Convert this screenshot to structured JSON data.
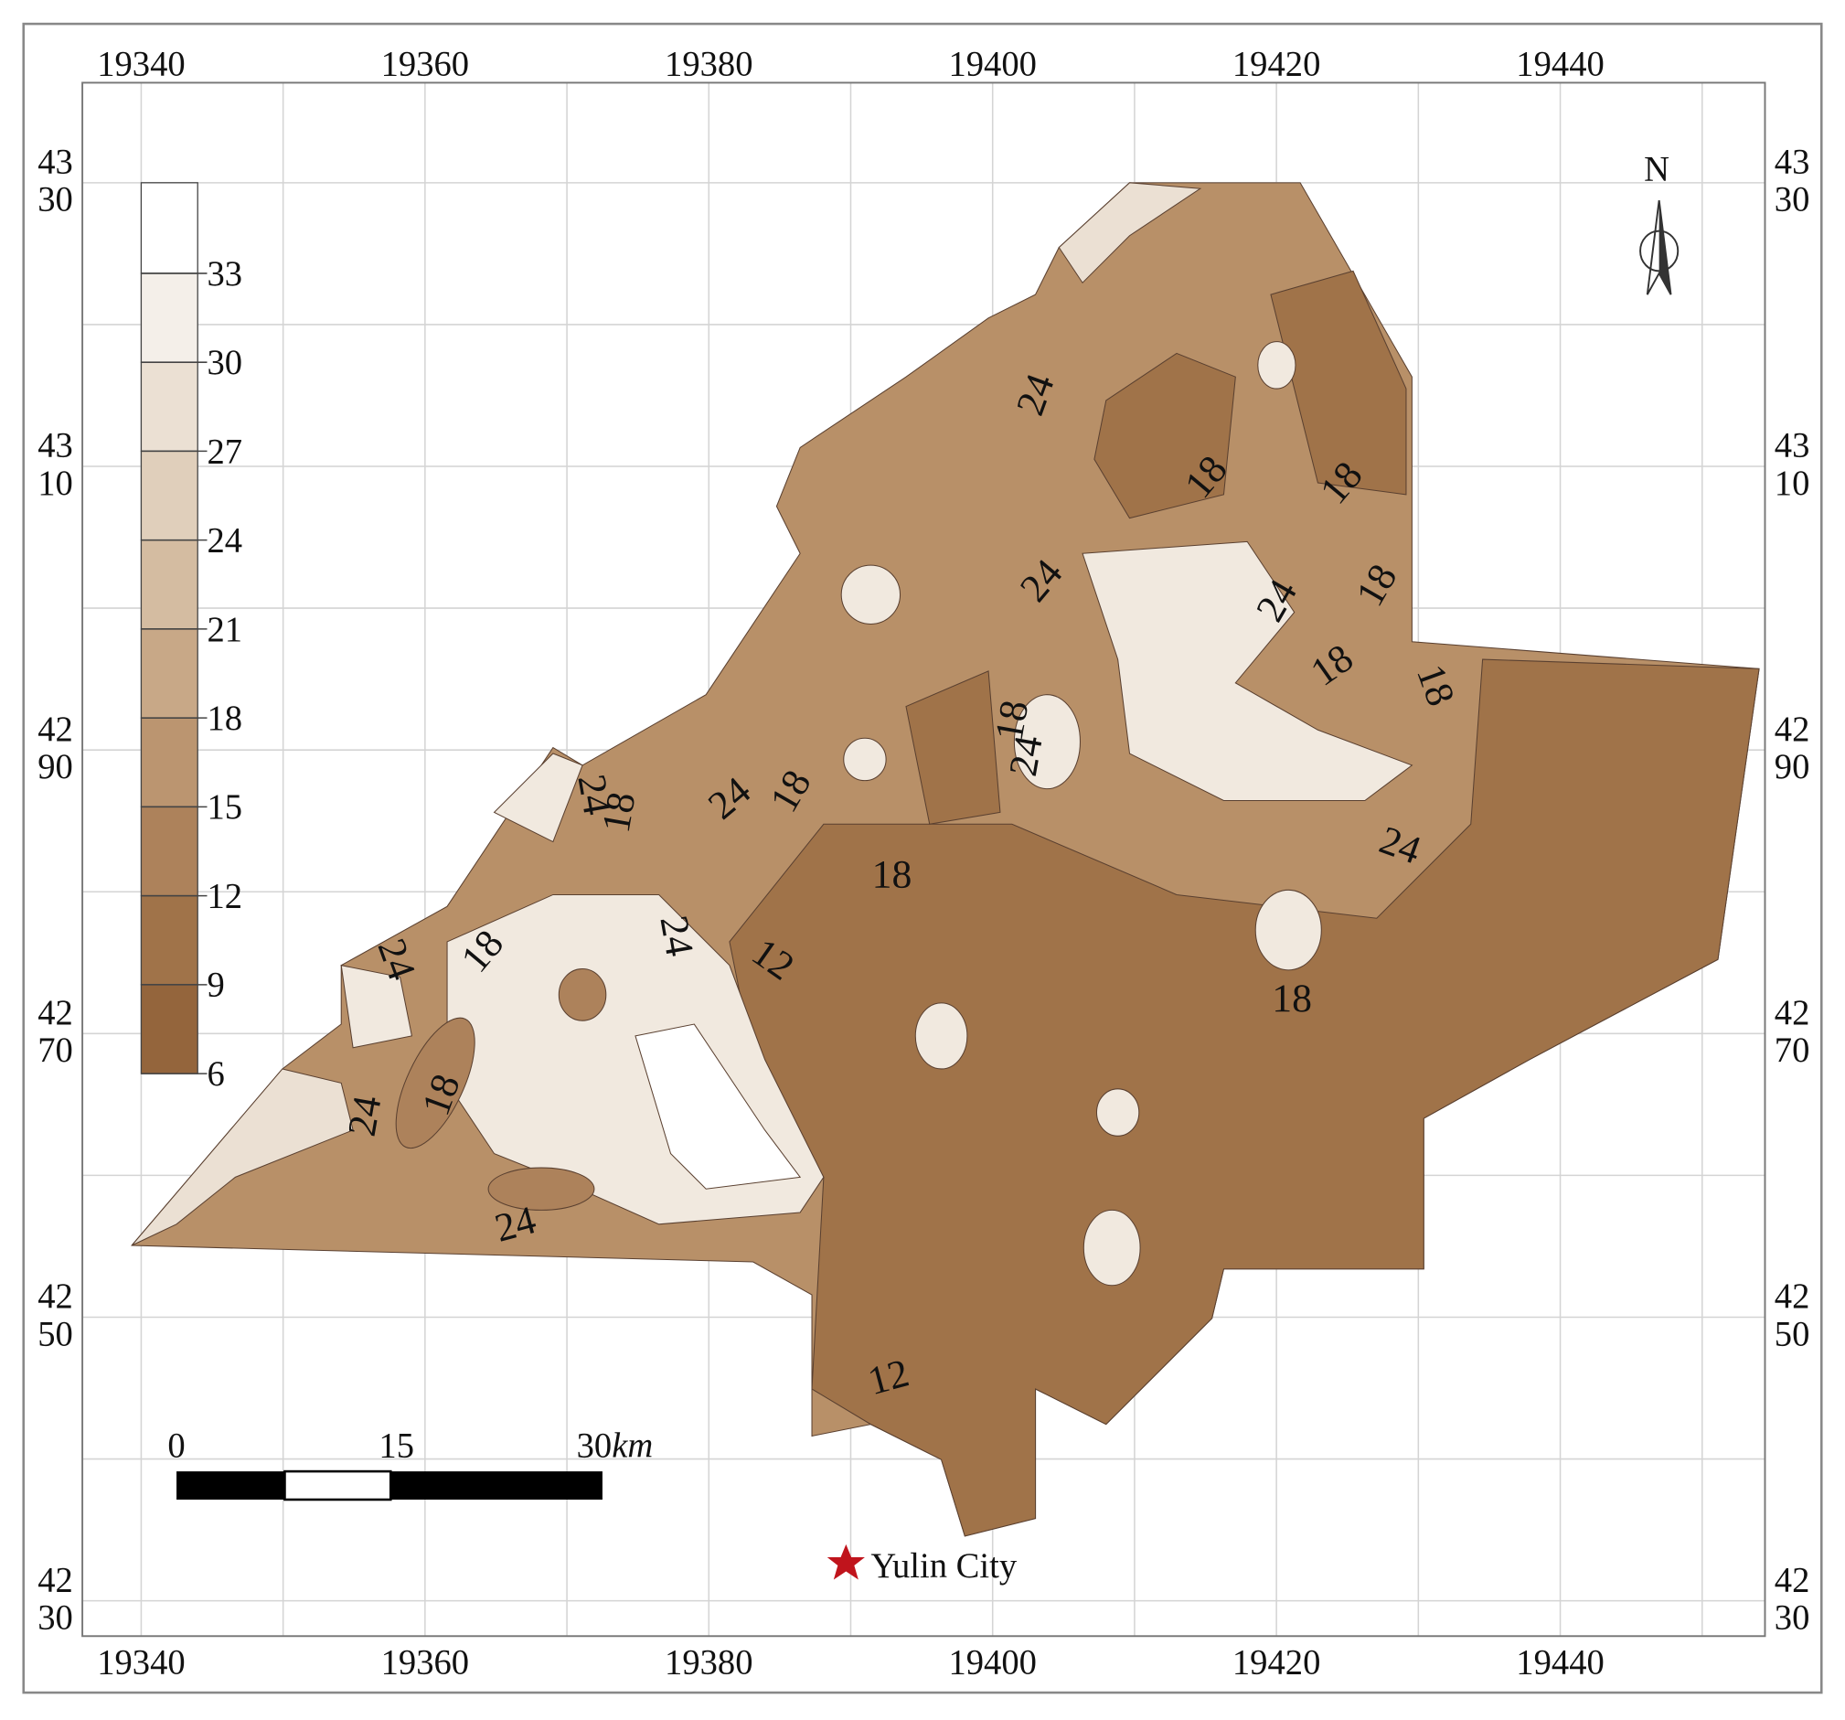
{
  "top_axis": [
    "19340",
    "19360",
    "19380",
    "19400",
    "19420",
    "19440"
  ],
  "bottom_axis": [
    "19340",
    "19360",
    "19380",
    "19400",
    "19420",
    "19440"
  ],
  "side_axis": [
    [
      "43",
      "30"
    ],
    [
      "43",
      "10"
    ],
    [
      "42",
      "90"
    ],
    [
      "42",
      "70"
    ],
    [
      "42",
      "50"
    ],
    [
      "42",
      "30"
    ]
  ],
  "legend": {
    "values": [
      "33",
      "30",
      "27",
      "24",
      "21",
      "18",
      "15",
      "12",
      "9",
      "6"
    ],
    "colors": [
      "#ffffff",
      "#f4efe9",
      "#ebe0d3",
      "#e0cfbb",
      "#d4bca1",
      "#c8a887",
      "#bb9570",
      "#ad825b",
      "#a07349",
      "#94653c"
    ]
  },
  "contour_labels": [
    "24",
    "18",
    "18",
    "24",
    "24",
    "18",
    "18",
    "18",
    "18",
    "24",
    "24",
    "18",
    "24",
    "18",
    "18",
    "24",
    "24",
    "12",
    "24",
    "18",
    "18",
    "18",
    "24",
    "24",
    "12"
  ],
  "north": "N",
  "scale_bar": {
    "labels": [
      "0",
      "15",
      "30"
    ],
    "unit": "km"
  },
  "city": "Yulin City"
}
